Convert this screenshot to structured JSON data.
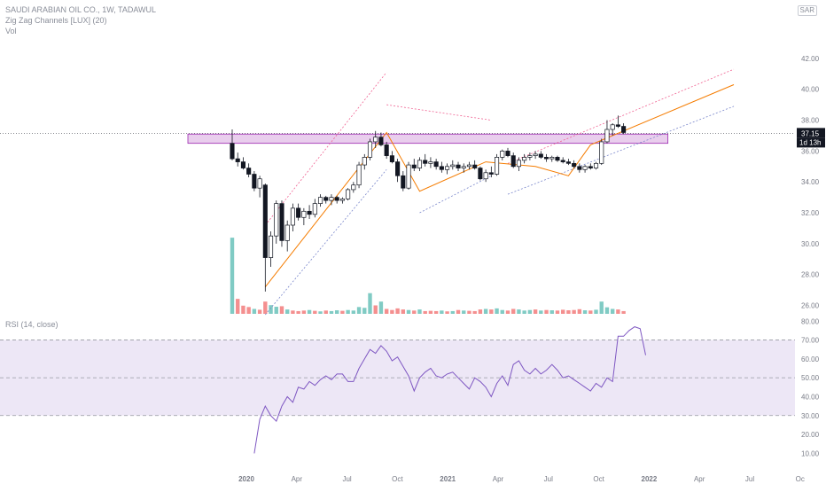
{
  "legend": {
    "symbol_line": "SAUDI ARABIAN OIL CO., 1W, TADAWUL",
    "indicator_line": "Zig Zag Channels [LUX] (20)",
    "volume_line": "Vol",
    "rsi_line": "RSI (14, close)"
  },
  "currency": "SAR",
  "price_badge": {
    "value": "37.15",
    "countdown": "1d 13h"
  },
  "colors": {
    "up": "#26a69a",
    "down": "#ef5350",
    "candle_body_up": "#ffffff",
    "candle_body_down": "#131722",
    "zigzag": "#f57c00",
    "upper_channel": "#f06292",
    "lower_channel": "#7986cb",
    "zone_fill": "#e1bee7",
    "zone_stroke": "#9c27b0",
    "rsi_line": "#7e57c2",
    "rsi_band": "#ede7f6",
    "vol_up": "#80cbc4",
    "vol_down": "#f48f8f",
    "grid_text": "#787b86"
  },
  "chart_data": [
    {
      "type": "candlestick",
      "title": "",
      "price_axis": {
        "ticks": [
          "42.00",
          "40.00",
          "38.00",
          "36.00",
          "34.00",
          "32.00",
          "30.00",
          "28.00",
          "26.00"
        ],
        "range": [
          25.4,
          43.2
        ]
      },
      "time_axis": {
        "ticks": [
          "2020",
          "Apr",
          "Jul",
          "Oct",
          "2021",
          "Apr",
          "Jul",
          "Oct",
          "2022",
          "Apr",
          "Jul",
          "Oc"
        ],
        "week_range": [
          0,
          104
        ]
      },
      "last_price": 37.15,
      "resistance_zone": {
        "low": 36.5,
        "high": 37.1,
        "from_week": 0,
        "to_week": 71
      },
      "zigzag_points": [
        [
          6,
          27.2
        ],
        [
          28,
          37.2
        ],
        [
          34,
          33.4
        ],
        [
          46,
          35.3
        ],
        [
          55,
          35.0
        ],
        [
          61,
          34.4
        ],
        [
          65,
          36.4
        ],
        [
          91,
          40.3
        ]
      ],
      "channel_upper": [
        [
          6,
          31.2
        ],
        [
          28,
          41.1
        ]
      ],
      "channel_lower": [
        [
          6,
          25.4
        ],
        [
          28,
          34.8
        ]
      ],
      "channel2_upper": [
        [
          28,
          39.0
        ],
        [
          47,
          38.0
        ]
      ],
      "channel2_lower": [
        [
          34,
          32.0
        ],
        [
          47,
          34.4
        ]
      ],
      "channel3_upper": [
        [
          50,
          35.2
        ],
        [
          91,
          41.3
        ]
      ],
      "channel3_lower": [
        [
          50,
          33.2
        ],
        [
          91,
          38.9
        ]
      ],
      "candles": [
        [
          36.5,
          37.4,
          35.4,
          35.5
        ],
        [
          35.5,
          35.9,
          35.0,
          35.3
        ],
        [
          35.3,
          35.6,
          34.8,
          34.9
        ],
        [
          34.9,
          35.2,
          34.3,
          34.5
        ],
        [
          34.5,
          34.7,
          33.4,
          33.6
        ],
        [
          33.6,
          34.4,
          33.0,
          34.2
        ],
        [
          33.8,
          33.9,
          26.9,
          29.1
        ],
        [
          29.1,
          30.8,
          28.5,
          30.5
        ],
        [
          30.5,
          32.8,
          30.0,
          32.6
        ],
        [
          32.6,
          32.8,
          29.8,
          30.2
        ],
        [
          30.2,
          31.5,
          29.5,
          31.2
        ],
        [
          31.2,
          32.6,
          30.8,
          32.3
        ],
        [
          32.3,
          32.6,
          31.5,
          31.7
        ],
        [
          31.7,
          32.3,
          31.2,
          32.1
        ],
        [
          32.1,
          32.5,
          31.6,
          31.9
        ],
        [
          31.9,
          32.9,
          31.7,
          32.6
        ],
        [
          32.6,
          33.2,
          32.4,
          33.0
        ],
        [
          33.0,
          33.1,
          32.6,
          32.8
        ],
        [
          32.8,
          33.2,
          32.5,
          33.0
        ],
        [
          33.0,
          33.1,
          32.6,
          32.8
        ],
        [
          32.8,
          33.0,
          32.6,
          32.9
        ],
        [
          32.9,
          33.6,
          32.8,
          33.5
        ],
        [
          33.5,
          34.0,
          33.3,
          33.8
        ],
        [
          33.8,
          35.3,
          33.6,
          35.1
        ],
        [
          35.1,
          35.8,
          34.8,
          35.6
        ],
        [
          35.6,
          36.8,
          35.4,
          36.6
        ],
        [
          36.6,
          37.3,
          36.2,
          36.9
        ],
        [
          36.9,
          37.2,
          36.3,
          36.4
        ],
        [
          36.4,
          36.6,
          35.5,
          35.7
        ],
        [
          35.7,
          36.0,
          35.2,
          35.3
        ],
        [
          35.3,
          35.5,
          34.0,
          34.4
        ],
        [
          34.4,
          34.7,
          33.4,
          33.6
        ],
        [
          33.6,
          35.3,
          33.5,
          35.1
        ],
        [
          35.1,
          35.5,
          34.7,
          34.9
        ],
        [
          34.9,
          35.6,
          34.7,
          35.4
        ],
        [
          35.4,
          35.8,
          35.0,
          35.2
        ],
        [
          35.2,
          35.6,
          34.9,
          35.3
        ],
        [
          35.3,
          35.5,
          34.8,
          35.0
        ],
        [
          35.0,
          35.3,
          34.6,
          34.8
        ],
        [
          34.8,
          35.2,
          34.5,
          35.0
        ],
        [
          35.0,
          35.4,
          34.8,
          35.1
        ],
        [
          35.1,
          35.3,
          34.7,
          34.9
        ],
        [
          34.9,
          35.2,
          34.6,
          35.0
        ],
        [
          35.0,
          35.3,
          34.8,
          35.1
        ],
        [
          35.1,
          35.4,
          34.8,
          34.9
        ],
        [
          34.9,
          35.0,
          34.1,
          34.2
        ],
        [
          34.2,
          34.8,
          34.0,
          34.6
        ],
        [
          34.6,
          35.0,
          34.3,
          34.5
        ],
        [
          34.5,
          35.8,
          34.4,
          35.6
        ],
        [
          35.6,
          36.1,
          35.4,
          36.0
        ],
        [
          36.0,
          36.2,
          35.6,
          35.7
        ],
        [
          35.7,
          35.9,
          34.9,
          35.0
        ],
        [
          35.0,
          35.6,
          34.7,
          35.4
        ],
        [
          35.4,
          35.8,
          35.2,
          35.6
        ],
        [
          35.6,
          35.9,
          35.4,
          35.7
        ],
        [
          35.7,
          36.0,
          35.5,
          35.8
        ],
        [
          35.8,
          36.0,
          35.5,
          35.6
        ],
        [
          35.6,
          35.8,
          35.3,
          35.5
        ],
        [
          35.5,
          35.7,
          35.3,
          35.6
        ],
        [
          35.6,
          35.7,
          35.3,
          35.4
        ],
        [
          35.4,
          35.6,
          35.2,
          35.3
        ],
        [
          35.3,
          35.5,
          35.1,
          35.2
        ],
        [
          35.2,
          35.4,
          34.9,
          35.0
        ],
        [
          35.0,
          35.2,
          34.6,
          34.8
        ],
        [
          34.8,
          35.1,
          34.6,
          35.0
        ],
        [
          35.0,
          35.2,
          34.8,
          34.9
        ],
        [
          34.9,
          35.3,
          34.8,
          35.2
        ],
        [
          35.2,
          36.8,
          35.1,
          36.6
        ],
        [
          36.6,
          38.0,
          36.5,
          37.4
        ],
        [
          37.4,
          37.8,
          37.0,
          37.7
        ],
        [
          37.7,
          38.3,
          37.5,
          37.6
        ],
        [
          37.6,
          37.8,
          37.1,
          37.2
        ]
      ],
      "volumes": [
        [
          28.0,
          "up"
        ],
        [
          5.5,
          "down"
        ],
        [
          3.0,
          "down"
        ],
        [
          2.5,
          "down"
        ],
        [
          1.8,
          "up"
        ],
        [
          1.5,
          "down"
        ],
        [
          4.5,
          "down"
        ],
        [
          3.2,
          "up"
        ],
        [
          2.6,
          "up"
        ],
        [
          2.8,
          "down"
        ],
        [
          1.6,
          "up"
        ],
        [
          1.2,
          "down"
        ],
        [
          1.0,
          "down"
        ],
        [
          1.2,
          "down"
        ],
        [
          1.4,
          "up"
        ],
        [
          1.1,
          "down"
        ],
        [
          0.9,
          "up"
        ],
        [
          1.2,
          "down"
        ],
        [
          1.0,
          "up"
        ],
        [
          1.3,
          "up"
        ],
        [
          1.1,
          "down"
        ],
        [
          1.4,
          "up"
        ],
        [
          1.2,
          "up"
        ],
        [
          2.5,
          "up"
        ],
        [
          2.2,
          "up"
        ],
        [
          7.6,
          "up"
        ],
        [
          3.1,
          "down"
        ],
        [
          4.5,
          "up"
        ],
        [
          1.8,
          "down"
        ],
        [
          1.4,
          "down"
        ],
        [
          2.0,
          "down"
        ],
        [
          1.6,
          "down"
        ],
        [
          1.4,
          "up"
        ],
        [
          1.2,
          "down"
        ],
        [
          1.6,
          "up"
        ],
        [
          1.0,
          "down"
        ],
        [
          1.1,
          "down"
        ],
        [
          1.0,
          "down"
        ],
        [
          1.2,
          "up"
        ],
        [
          0.9,
          "down"
        ],
        [
          1.0,
          "up"
        ],
        [
          1.4,
          "down"
        ],
        [
          1.2,
          "up"
        ],
        [
          1.1,
          "down"
        ],
        [
          1.0,
          "down"
        ],
        [
          1.6,
          "down"
        ],
        [
          1.8,
          "up"
        ],
        [
          1.6,
          "down"
        ],
        [
          2.0,
          "up"
        ],
        [
          1.4,
          "up"
        ],
        [
          1.2,
          "down"
        ],
        [
          1.8,
          "down"
        ],
        [
          1.6,
          "up"
        ],
        [
          1.2,
          "up"
        ],
        [
          1.4,
          "up"
        ],
        [
          1.6,
          "down"
        ],
        [
          1.2,
          "up"
        ],
        [
          1.4,
          "down"
        ],
        [
          1.3,
          "up"
        ],
        [
          1.2,
          "down"
        ],
        [
          1.5,
          "down"
        ],
        [
          1.3,
          "down"
        ],
        [
          1.4,
          "down"
        ],
        [
          1.7,
          "down"
        ],
        [
          1.3,
          "up"
        ],
        [
          1.2,
          "down"
        ],
        [
          1.5,
          "up"
        ],
        [
          4.5,
          "up"
        ],
        [
          2.4,
          "up"
        ],
        [
          1.8,
          "up"
        ],
        [
          1.6,
          "down"
        ],
        [
          1.0,
          "down"
        ]
      ],
      "volume_scale_max": 30
    },
    {
      "type": "line",
      "title": "",
      "series_name": "",
      "y_ticks": [
        "80.00",
        "70.00",
        "60.00",
        "50.00",
        "40.00",
        "30.00",
        "20.00",
        "10.00"
      ],
      "ylim": [
        5,
        82
      ],
      "band": [
        30,
        70
      ],
      "midline": 50,
      "values": [
        10,
        28,
        35,
        30,
        27,
        35,
        40,
        37,
        45,
        44,
        48,
        46,
        49,
        51,
        49,
        52,
        52,
        48,
        48,
        55,
        60,
        65,
        63,
        67,
        64,
        59,
        61,
        56,
        51,
        43,
        50,
        53,
        55,
        51,
        50,
        52,
        53,
        50,
        47,
        44,
        50,
        48,
        45,
        40,
        47,
        51,
        46,
        57,
        59,
        54,
        52,
        55,
        52,
        54,
        57,
        54,
        50,
        51,
        49,
        47,
        45,
        43,
        47,
        45,
        50,
        48,
        72,
        72,
        75,
        77,
        76,
        62
      ],
      "start_week": 4
    }
  ]
}
